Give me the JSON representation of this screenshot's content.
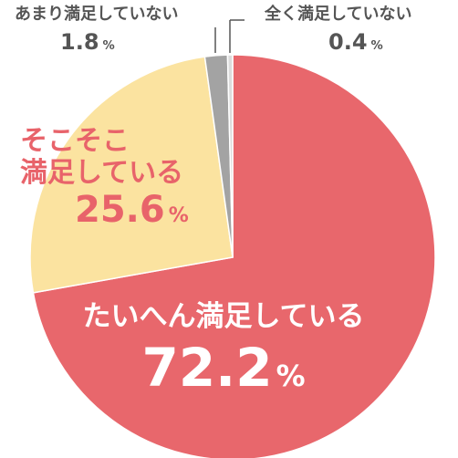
{
  "chart_data": {
    "type": "pie",
    "slices": [
      {
        "label": "たいへん満足している",
        "value": 72.2,
        "display": "72.2",
        "color": "#e8676c"
      },
      {
        "label": "そこそこ\n満足している",
        "value": 25.6,
        "display": "25.6",
        "color": "#fbe3a0"
      },
      {
        "label": "あまり満足していない",
        "value": 1.8,
        "display": "1.8",
        "color": "#a3a3a3"
      },
      {
        "label": "全く満足していない",
        "value": 0.4,
        "display": "0.4",
        "color": "#dcdcdc"
      }
    ],
    "unit": "%",
    "start_angle_deg": 0,
    "direction": "clockwise"
  }
}
